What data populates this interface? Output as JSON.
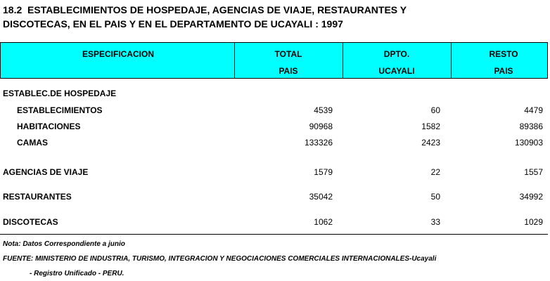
{
  "title": [
    "18.2  ESTABLECIMIENTOS DE HOSPEDAJE, AGENCIAS DE VIAJE, RESTAURANTES Y",
    "DISCOTECAS, EN EL PAIS Y EN EL DEPARTAMENTO DE UCAYALI : 1997"
  ],
  "table": {
    "header": [
      [
        "ESPECIFICACION"
      ],
      [
        "TOTAL",
        "PAIS"
      ],
      [
        "DPTO.",
        "UCAYALI"
      ],
      [
        "RESTO",
        "PAIS"
      ]
    ],
    "rows": [
      [
        "ESTABLEC.DE HOSPEDAJE"
      ],
      [
        "ESTABLECIMIENTOS",
        4539,
        60,
        4479
      ],
      [
        "HABITACIONES",
        90968,
        1582,
        89386
      ],
      [
        "CAMAS",
        133326,
        2423,
        130903
      ],
      [
        "AGENCIAS DE VIAJE",
        1579,
        22,
        1557
      ],
      [
        "RESTAURANTES",
        35042,
        50,
        34992
      ],
      [
        "DISCOTECAS",
        1062,
        33,
        1029
      ]
    ]
  },
  "notes": [
    "Nota: Datos Correspondiente a junio",
    "FUENTE: MINISTERIO DE INDUSTRIA, TURISMO, INTEGRACION Y NEGOCIACIONES COMERCIALES INTERNACIONALES-Ucayali",
    "- Registro Unificado - PERU."
  ]
}
